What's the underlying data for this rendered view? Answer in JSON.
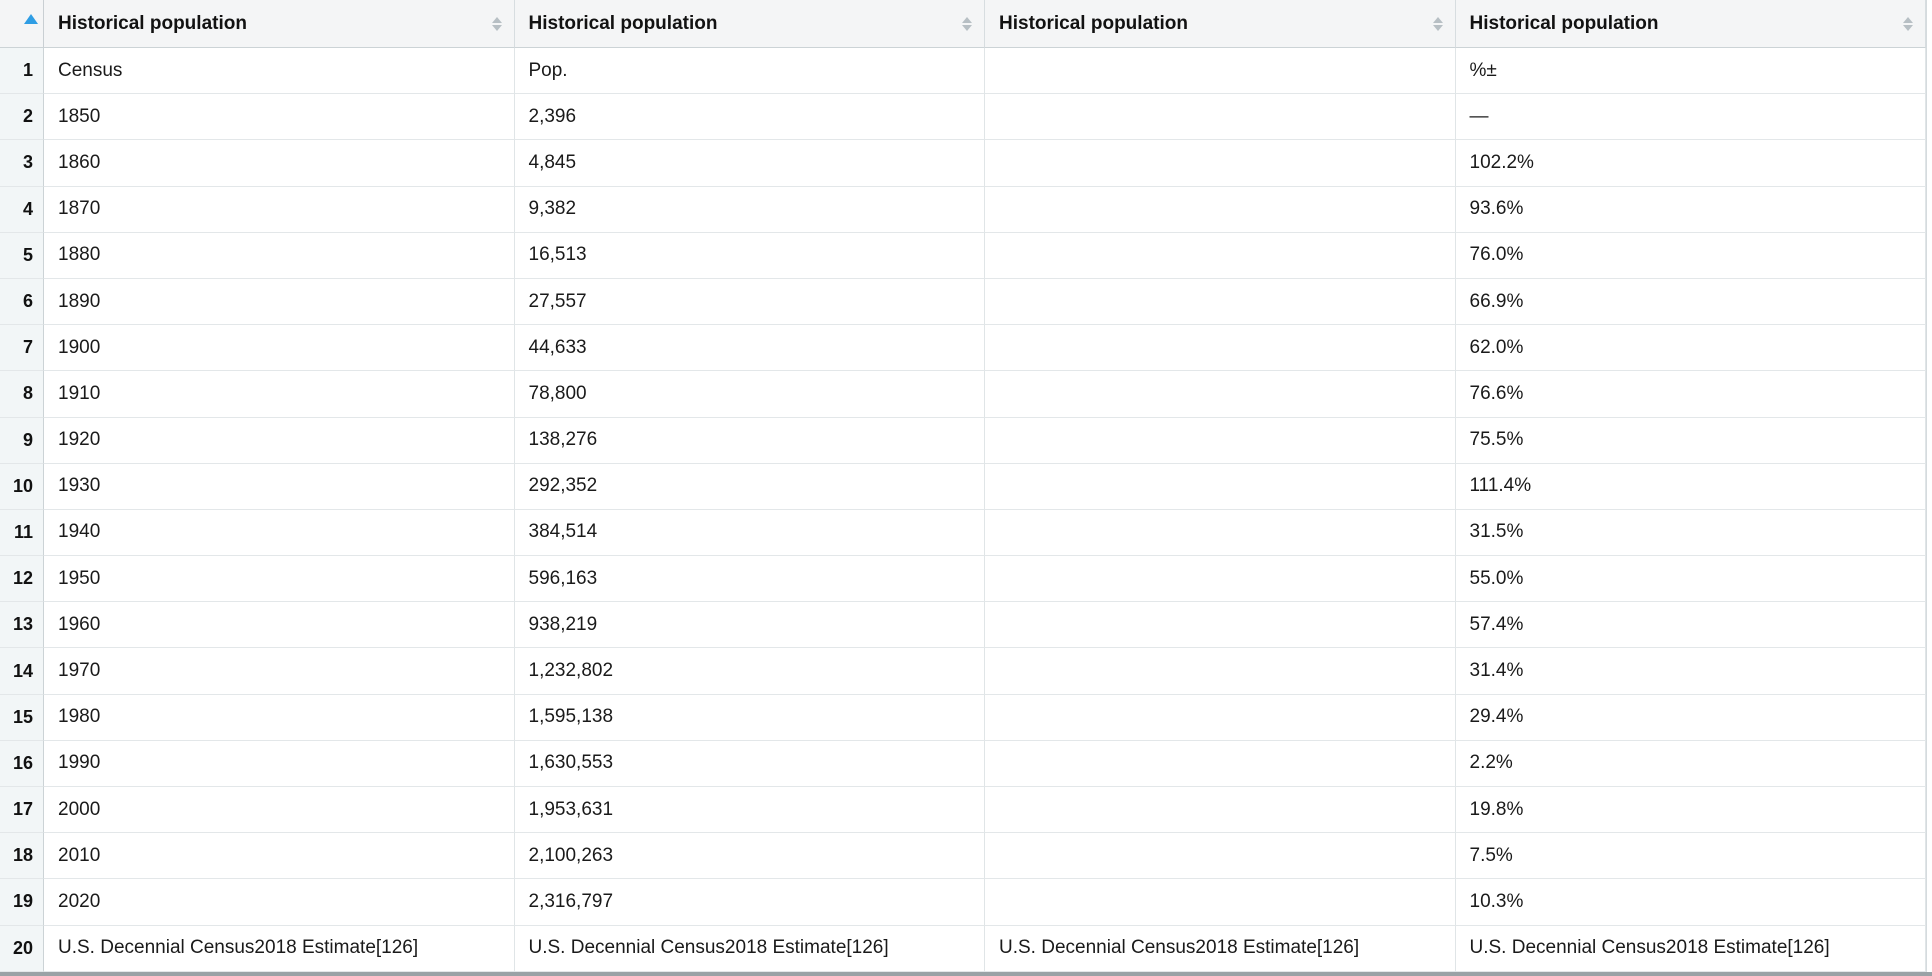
{
  "colors": {
    "accent_sort_ascending": "#2e9de4",
    "sort_chevron_gray": "#b7bfc4",
    "header_background": "#f4f5f6",
    "gutter_background": "#f2f6f7",
    "grid_line": "#e3e7e9",
    "bottom_edge": "#9aa2a6"
  },
  "icons": {
    "gutter_sort": "sort-ascending-icon",
    "column_sort": "sort-toggle-icon"
  },
  "table": {
    "sort_state": "ascending",
    "columns": [
      {
        "label": "Historical population"
      },
      {
        "label": "Historical population"
      },
      {
        "label": "Historical population"
      },
      {
        "label": "Historical population"
      }
    ],
    "rows": [
      {
        "num": "1",
        "cells": [
          "Census",
          "Pop.",
          "",
          "%±"
        ]
      },
      {
        "num": "2",
        "cells": [
          "1850",
          "2,396",
          "",
          "—"
        ]
      },
      {
        "num": "3",
        "cells": [
          "1860",
          "4,845",
          "",
          "102.2%"
        ]
      },
      {
        "num": "4",
        "cells": [
          "1870",
          "9,382",
          "",
          "93.6%"
        ]
      },
      {
        "num": "5",
        "cells": [
          "1880",
          "16,513",
          "",
          "76.0%"
        ]
      },
      {
        "num": "6",
        "cells": [
          "1890",
          "27,557",
          "",
          "66.9%"
        ]
      },
      {
        "num": "7",
        "cells": [
          "1900",
          "44,633",
          "",
          "62.0%"
        ]
      },
      {
        "num": "8",
        "cells": [
          "1910",
          "78,800",
          "",
          "76.6%"
        ]
      },
      {
        "num": "9",
        "cells": [
          "1920",
          "138,276",
          "",
          "75.5%"
        ]
      },
      {
        "num": "10",
        "cells": [
          "1930",
          "292,352",
          "",
          "111.4%"
        ]
      },
      {
        "num": "11",
        "cells": [
          "1940",
          "384,514",
          "",
          "31.5%"
        ]
      },
      {
        "num": "12",
        "cells": [
          "1950",
          "596,163",
          "",
          "55.0%"
        ]
      },
      {
        "num": "13",
        "cells": [
          "1960",
          "938,219",
          "",
          "57.4%"
        ]
      },
      {
        "num": "14",
        "cells": [
          "1970",
          "1,232,802",
          "",
          "31.4%"
        ]
      },
      {
        "num": "15",
        "cells": [
          "1980",
          "1,595,138",
          "",
          "29.4%"
        ]
      },
      {
        "num": "16",
        "cells": [
          "1990",
          "1,630,553",
          "",
          "2.2%"
        ]
      },
      {
        "num": "17",
        "cells": [
          "2000",
          "1,953,631",
          "",
          "19.8%"
        ]
      },
      {
        "num": "18",
        "cells": [
          "2010",
          "2,100,263",
          "",
          "7.5%"
        ]
      },
      {
        "num": "19",
        "cells": [
          "2020",
          "2,316,797",
          "",
          "10.3%"
        ]
      },
      {
        "num": "20",
        "cells": [
          "U.S. Decennial Census2018 Estimate[126]",
          "U.S. Decennial Census2018 Estimate[126]",
          "U.S. Decennial Census2018 Estimate[126]",
          "U.S. Decennial Census2018 Estimate[126]"
        ]
      }
    ]
  }
}
